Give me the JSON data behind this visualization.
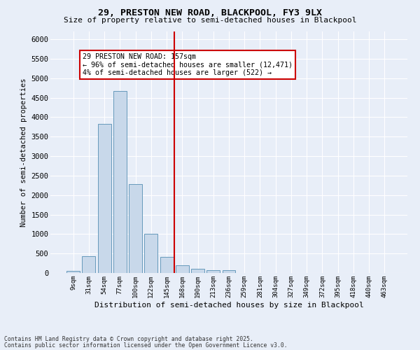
{
  "title1": "29, PRESTON NEW ROAD, BLACKPOOL, FY3 9LX",
  "title2": "Size of property relative to semi-detached houses in Blackpool",
  "xlabel": "Distribution of semi-detached houses by size in Blackpool",
  "ylabel": "Number of semi-detached properties",
  "categories": [
    "9sqm",
    "31sqm",
    "54sqm",
    "77sqm",
    "100sqm",
    "122sqm",
    "145sqm",
    "168sqm",
    "190sqm",
    "213sqm",
    "236sqm",
    "259sqm",
    "281sqm",
    "304sqm",
    "327sqm",
    "349sqm",
    "372sqm",
    "395sqm",
    "418sqm",
    "440sqm",
    "463sqm"
  ],
  "values": [
    50,
    430,
    3820,
    4680,
    2290,
    1010,
    410,
    200,
    105,
    70,
    70,
    0,
    0,
    0,
    0,
    0,
    0,
    0,
    0,
    0,
    0
  ],
  "bar_color": "#c8d8ea",
  "bar_edge_color": "#6699bb",
  "vline_color": "#cc0000",
  "vline_x_idx": 6.5,
  "annotation_text": "29 PRESTON NEW ROAD: 157sqm\n← 96% of semi-detached houses are smaller (12,471)\n4% of semi-detached houses are larger (522) →",
  "annotation_box_color": "#cc0000",
  "ylim": [
    0,
    6200
  ],
  "yticks": [
    0,
    500,
    1000,
    1500,
    2000,
    2500,
    3000,
    3500,
    4000,
    4500,
    5000,
    5500,
    6000
  ],
  "footer1": "Contains HM Land Registry data © Crown copyright and database right 2025.",
  "footer2": "Contains public sector information licensed under the Open Government Licence v3.0.",
  "bg_color": "#e8eef8",
  "plot_bg_color": "#e8eef8"
}
